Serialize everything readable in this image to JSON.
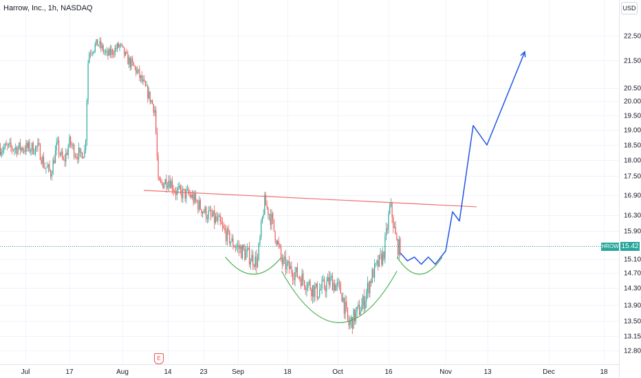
{
  "header": {
    "title": "Harrow, Inc., 1h, NASDAQ"
  },
  "price_scale": {
    "currency": "USD"
  },
  "last_price": {
    "ticker": "HROW",
    "value": "15.42"
  },
  "earnings_marker": {
    "label": "E"
  },
  "colors": {
    "up": "#26a69a",
    "down": "#ef5350",
    "neckline": "#f06e6e",
    "pattern": "#4caf50",
    "projection": "#1e53e5",
    "grid": "#f0f3fa"
  },
  "chart_data": {
    "type": "candlestick",
    "title": "Harrow, Inc., 1h, NASDAQ",
    "ylim": [
      12.6,
      22.9
    ],
    "y_ticks": [
      "22.50",
      "21.50",
      "20.50",
      "20.00",
      "19.50",
      "19.00",
      "18.50",
      "18.00",
      "17.50",
      "16.90",
      "16.30",
      "15.90",
      "15.42",
      "15.10",
      "14.70",
      "14.30",
      "13.90",
      "13.50",
      "13.15",
      "12.80"
    ],
    "x_ticks": [
      "Jul",
      "17",
      "Aug",
      "14",
      "23",
      "Sep",
      "18",
      "Oct",
      "16",
      "Nov",
      "13",
      "Dec",
      "18"
    ],
    "price_path": [
      {
        "x": "Jul 5",
        "y": 18.4
      },
      {
        "x": "Jul 7",
        "y": 17.8
      },
      {
        "x": "Jul 9",
        "y": 17.6
      },
      {
        "x": "Jul 11",
        "y": 18.5
      },
      {
        "x": "Jul 13",
        "y": 17.9
      },
      {
        "x": "Jul 15",
        "y": 18.6
      },
      {
        "x": "Jul 17",
        "y": 18.2
      },
      {
        "x": "Jul 20",
        "y": 18.3
      },
      {
        "x": "Jul 21",
        "y": 21.8
      },
      {
        "x": "Jul 24",
        "y": 22.2
      },
      {
        "x": "Jul 27",
        "y": 21.7
      },
      {
        "x": "Jul 31",
        "y": 22.1
      },
      {
        "x": "Aug 2",
        "y": 21.6
      },
      {
        "x": "Aug 5",
        "y": 21.1
      },
      {
        "x": "Aug 8",
        "y": 20.3
      },
      {
        "x": "Aug 10",
        "y": 19.7
      },
      {
        "x": "Aug 11",
        "y": 17.2
      },
      {
        "x": "Aug 14",
        "y": 17.4
      },
      {
        "x": "Aug 16",
        "y": 17.0
      },
      {
        "x": "Aug 20",
        "y": 16.9
      },
      {
        "x": "Aug 24",
        "y": 16.4
      },
      {
        "x": "Aug 28",
        "y": 16.1
      },
      {
        "x": "Sep 1",
        "y": 15.5
      },
      {
        "x": "Sep 5",
        "y": 15.2
      },
      {
        "x": "Sep 8",
        "y": 15.0
      },
      {
        "x": "Sep 10",
        "y": 16.7
      },
      {
        "x": "Sep 12",
        "y": 16.2
      },
      {
        "x": "Sep 15",
        "y": 15.0
      },
      {
        "x": "Sep 20",
        "y": 14.6
      },
      {
        "x": "Sep 25",
        "y": 14.2
      },
      {
        "x": "Sep 29",
        "y": 14.5
      },
      {
        "x": "Oct 2",
        "y": 14.2
      },
      {
        "x": "Oct 4",
        "y": 13.4
      },
      {
        "x": "Oct 8",
        "y": 13.9
      },
      {
        "x": "Oct 11",
        "y": 14.7
      },
      {
        "x": "Oct 14",
        "y": 15.2
      },
      {
        "x": "Oct 16",
        "y": 16.6
      },
      {
        "x": "Oct 18",
        "y": 15.42
      }
    ],
    "annotations": {
      "neckline": [
        {
          "x": "Aug 7",
          "y": 17.05
        },
        {
          "x": "Nov 10",
          "y": 16.55
        }
      ],
      "left_shoulder_arc": "Aug 30 – Sep 15",
      "head_arc": "Sep 15 – Oct 18",
      "right_shoulder_arc": "Oct 18 – Oct 31",
      "projection": [
        {
          "x": "Oct 19",
          "y": 15.25
        },
        {
          "x": "Oct 21",
          "y": 15.05
        },
        {
          "x": "Oct 23",
          "y": 15.15
        },
        {
          "x": "Oct 25",
          "y": 14.95
        },
        {
          "x": "Oct 27",
          "y": 15.15
        },
        {
          "x": "Oct 29",
          "y": 14.95
        },
        {
          "x": "Nov 1",
          "y": 15.3
        },
        {
          "x": "Nov 3",
          "y": 16.4
        },
        {
          "x": "Nov 5",
          "y": 16.15
        },
        {
          "x": "Nov 9",
          "y": 19.15
        },
        {
          "x": "Nov 13",
          "y": 18.5
        },
        {
          "x": "Nov 24",
          "y": 21.85
        }
      ]
    }
  }
}
